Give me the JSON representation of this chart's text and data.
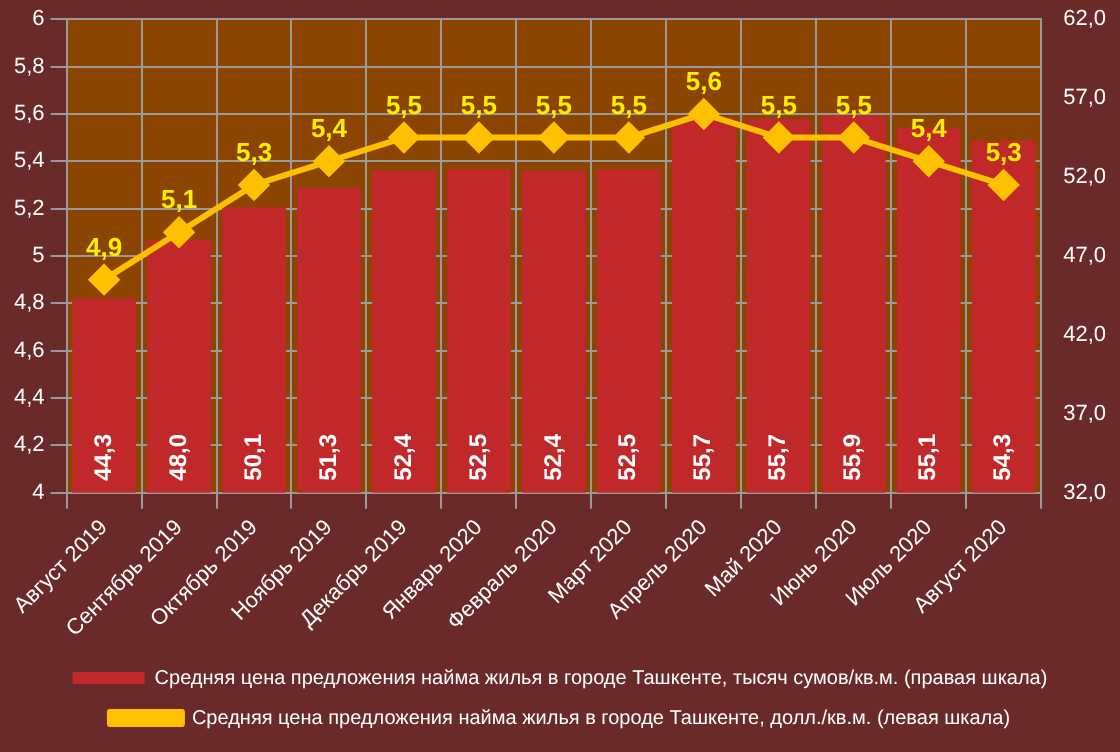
{
  "chart_data": {
    "type": "bar",
    "categories": [
      "Август 2019",
      "Сентябрь 2019",
      "Октябрь 2019",
      "Ноябрь 2019",
      "Декабрь 2019",
      "Январь 2020",
      "Февраль 2020",
      "Март 2020",
      "Апрель 2020",
      "Май 2020",
      "Июнь 2020",
      "Июль 2020",
      "Август 2020"
    ],
    "series": [
      {
        "name": "Средняя цена предложения найма жилья в городе Ташкенте, тысяч сумов/кв.м. (правая шкала)",
        "axis": "y2",
        "color": "#c0282a",
        "values": [
          44.3,
          48.0,
          50.1,
          51.3,
          52.4,
          52.5,
          52.4,
          52.5,
          55.7,
          55.7,
          55.9,
          55.1,
          54.3
        ],
        "value_labels": [
          "44,3",
          "48,0",
          "50,1",
          "51,3",
          "52,4",
          "52,5",
          "52,4",
          "52,5",
          "55,7",
          "55,7",
          "55,9",
          "55,1",
          "54,3"
        ]
      },
      {
        "name": "Средняя цена предложения найма жилья в городе Ташкенте, долл./кв.м. (левая шкала)",
        "type": "line",
        "color": "#ffc000",
        "marker": "diamond",
        "values": [
          4.9,
          5.1,
          5.3,
          5.4,
          5.5,
          5.5,
          5.5,
          5.5,
          5.6,
          5.5,
          5.5,
          5.4,
          5.3
        ],
        "value_labels": [
          "4,9",
          "5,1",
          "5,3",
          "5,4",
          "5,5",
          "5,5",
          "5,5",
          "5,5",
          "5,6",
          "5,5",
          "5,5",
          "5,4",
          "5,3"
        ]
      }
    ],
    "ylim": [
      4,
      6
    ],
    "yticks": [
      4,
      {
        "value": 4.2,
        "label": "4,2"
      },
      {
        "value": 4.4,
        "label": "4,4"
      },
      {
        "value": 4.6,
        "label": "4,6"
      },
      {
        "value": 4.8,
        "label": "4,8"
      },
      5,
      {
        "value": 5.2,
        "label": "5,2"
      },
      {
        "value": 5.4,
        "label": "5,4"
      },
      {
        "value": 5.6,
        "label": "5,6"
      },
      {
        "value": 5.8,
        "label": "5,8"
      },
      6
    ],
    "y2lim": [
      32,
      62
    ],
    "y2ticks": [
      {
        "value": 32,
        "label": "32,0"
      },
      {
        "value": 37,
        "label": "37,0"
      },
      {
        "value": 42,
        "label": "42,0"
      },
      {
        "value": 47,
        "label": "47,0"
      },
      {
        "value": 52,
        "label": "52,0"
      },
      {
        "value": 57,
        "label": "57,0"
      },
      {
        "value": 62,
        "label": "62,0"
      }
    ],
    "grid": true,
    "legend": "bottom"
  }
}
